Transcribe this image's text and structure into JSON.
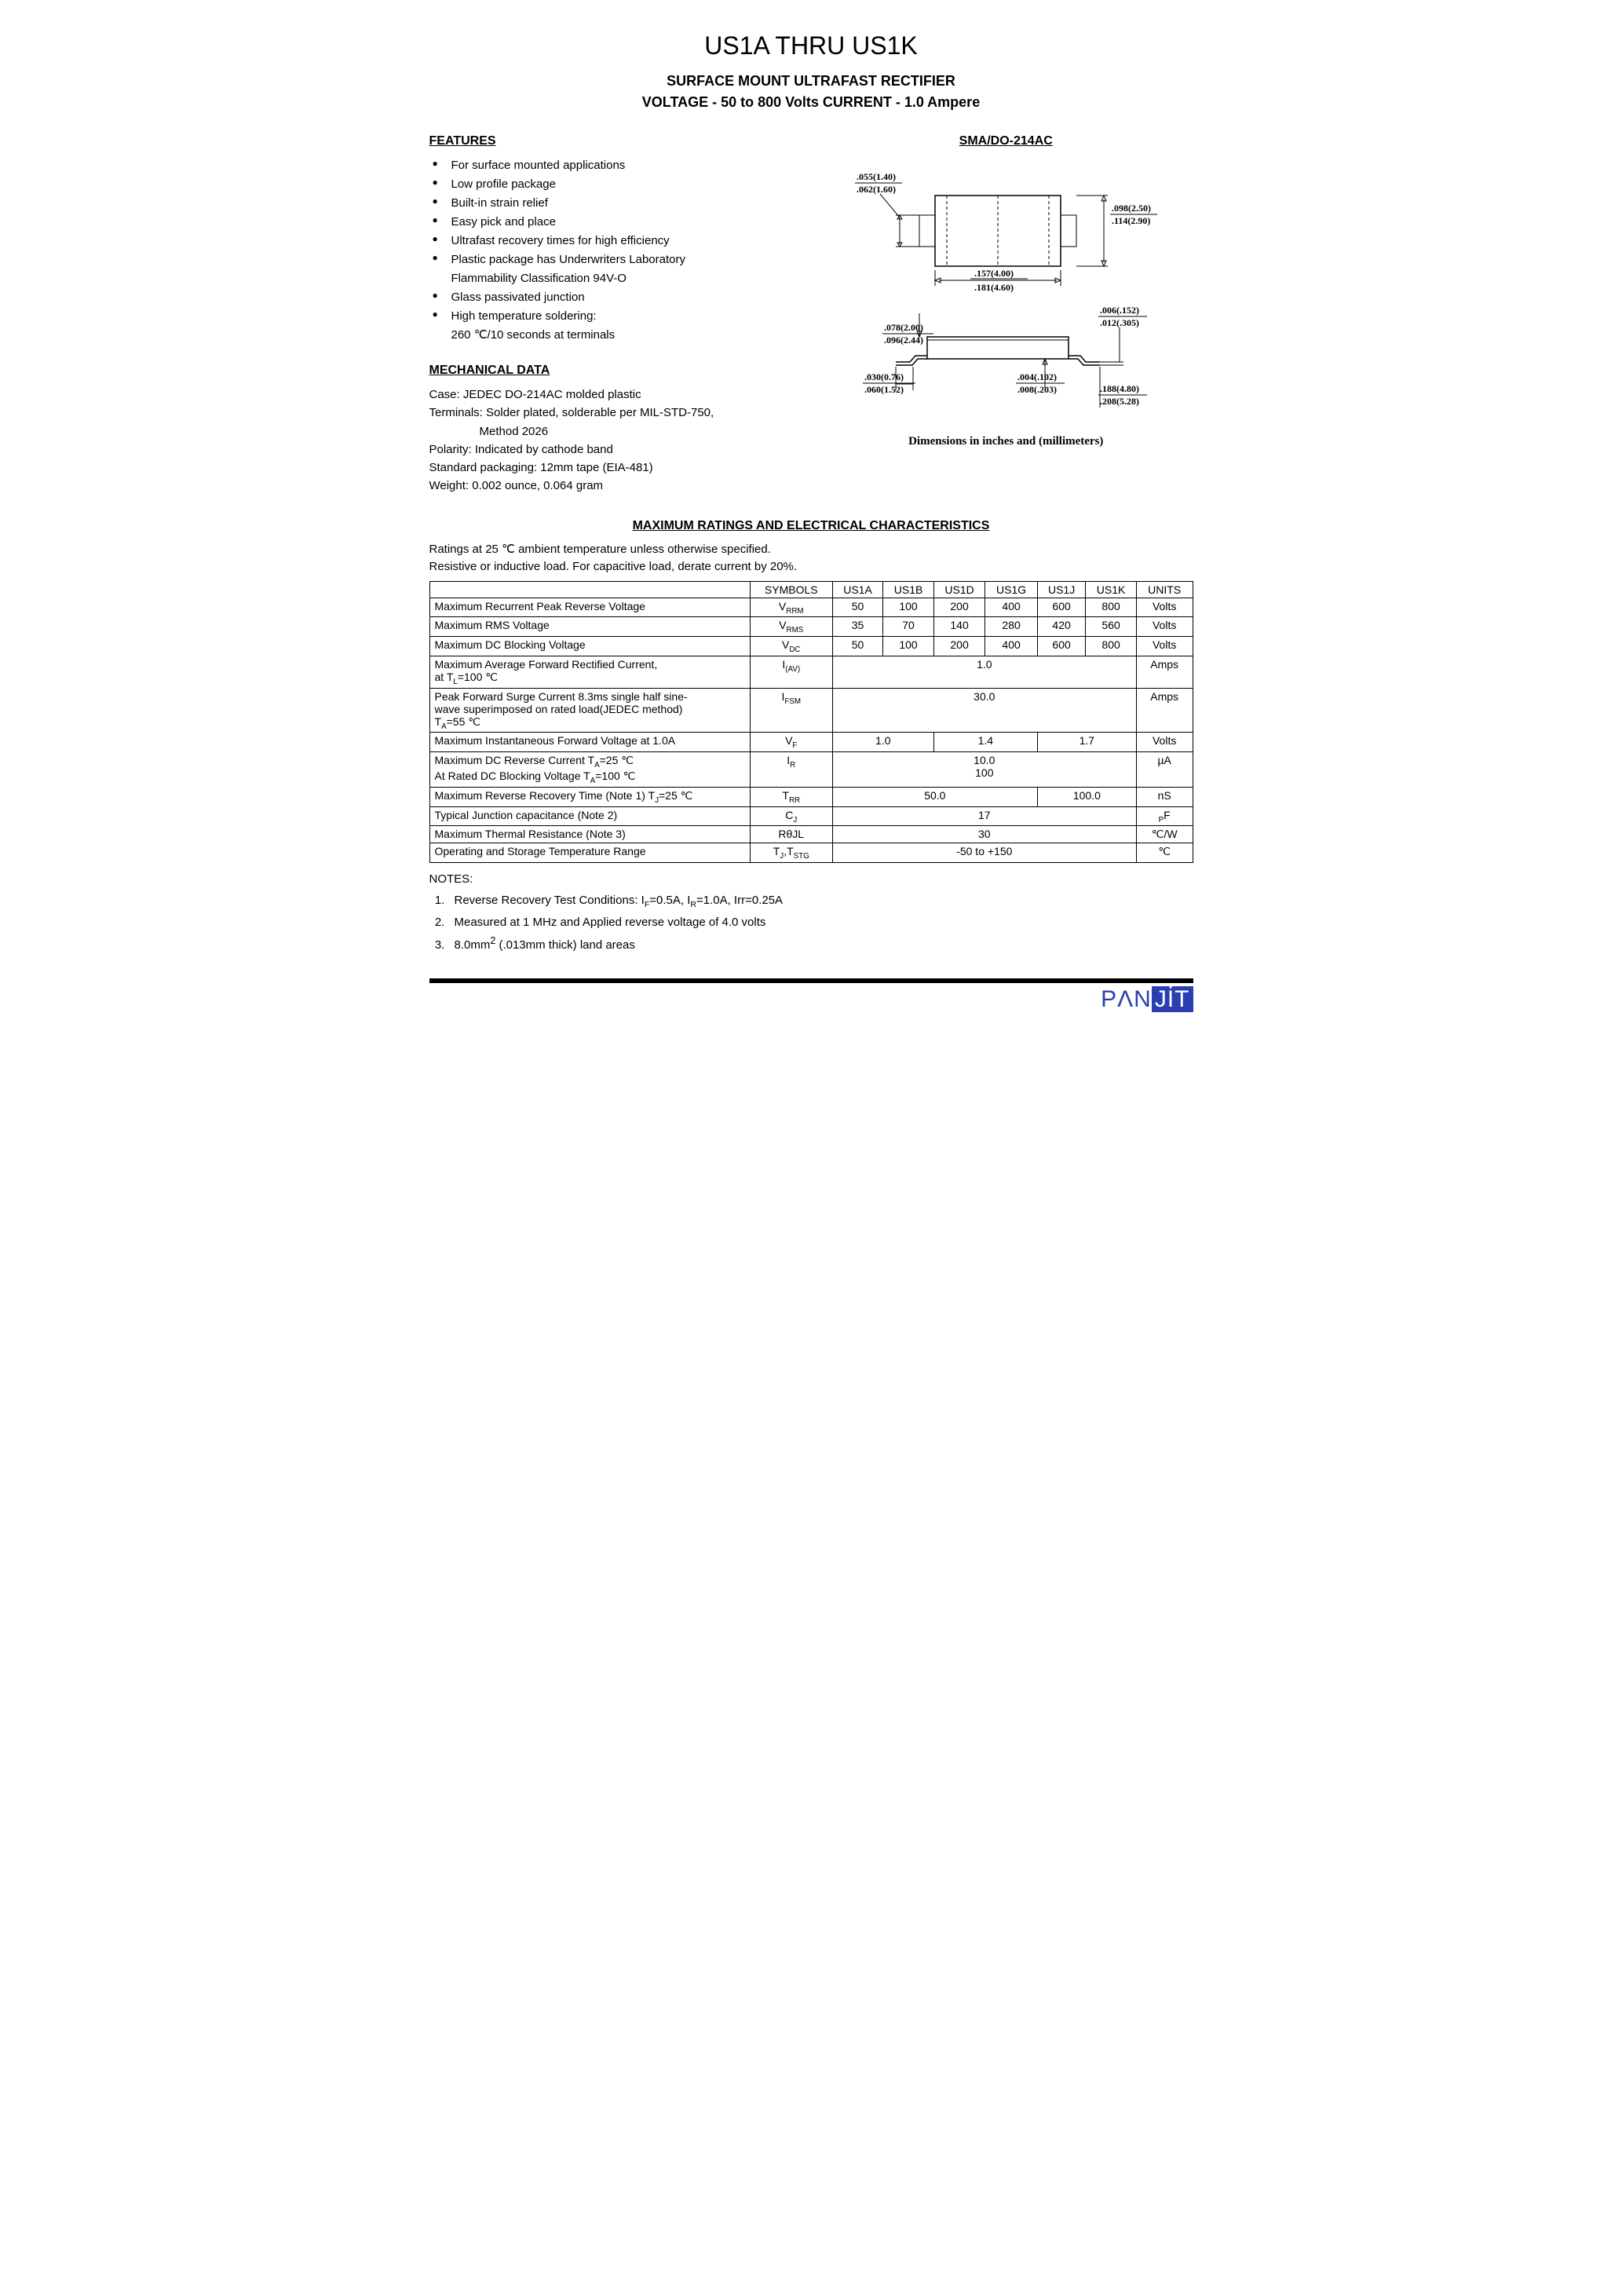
{
  "title": {
    "main": "US1A THRU US1K",
    "sub1": "SURFACE MOUNT ULTRAFAST RECTIFIER",
    "sub2": "VOLTAGE - 50 to 800 Volts    CURRENT - 1.0 Ampere"
  },
  "features": {
    "header": "FEATURES",
    "items": [
      "For surface mounted applications",
      "Low profile package",
      "Built-in strain relief",
      "Easy pick and place",
      "Ultrafast recovery times for high efficiency",
      "Plastic package has Underwriters Laboratory",
      "Flammability Classification 94V-O",
      "Glass passivated junction",
      "High temperature soldering:",
      "260 ℃/10 seconds at terminals"
    ],
    "continuation_indices": [
      6,
      9
    ]
  },
  "package": {
    "header": "SMA/DO-214AC",
    "caption": "Dimensions in inches and (millimeters)",
    "dims": {
      "d1_top": ".055(1.40)",
      "d1_bot": ".062(1.60)",
      "d2_top": ".098(2.50)",
      "d2_bot": ".114(2.90)",
      "d3_top": ".157(4.00)",
      "d3_bot": ".181(4.60)",
      "d4_top": ".006(.152)",
      "d4_bot": ".012(.305)",
      "d5_top": ".078(2.00)",
      "d5_bot": ".096(2.44)",
      "d6_top": ".030(0.76)",
      "d6_bot": ".060(1.52)",
      "d7_top": ".004(.102)",
      "d7_bot": ".008(.203)",
      "d8_top": ".188(4.80)",
      "d8_bot": ".208(5.28)"
    }
  },
  "mechanical": {
    "header": "MECHANICAL DATA",
    "lines": [
      "Case: JEDEC DO-214AC molded plastic",
      "Terminals: Solder plated, solderable per MIL-STD-750,",
      "Method 2026",
      "Polarity: Indicated by cathode band",
      "Standard packaging: 12mm tape (EIA-481)",
      "Weight: 0.002 ounce, 0.064 gram"
    ],
    "indent_indices": [
      2
    ]
  },
  "ratings": {
    "header": "MAXIMUM RATINGS AND ELECTRICAL CHARACTERISTICS",
    "intro1": "Ratings at 25 ℃  ambient temperature unless otherwise specified.",
    "intro2": "Resistive or inductive load.      For capacitive load, derate current by 20%.",
    "columns": [
      "SYMBOLS",
      "US1A",
      "US1B",
      "US1D",
      "US1G",
      "US1J",
      "US1K",
      "UNITS"
    ],
    "rows": [
      {
        "param": "Maximum Recurrent Peak Reverse Voltage",
        "symbol": "V<sub>RRM</sub>",
        "vals": [
          "50",
          "100",
          "200",
          "400",
          "600",
          "800"
        ],
        "unit": "Volts"
      },
      {
        "param": "Maximum RMS Voltage",
        "symbol": "V<sub>RMS</sub>",
        "vals": [
          "35",
          "70",
          "140",
          "280",
          "420",
          "560"
        ],
        "unit": "Volts"
      },
      {
        "param": "Maximum DC Blocking Voltage",
        "symbol": "V<sub>DC</sub>",
        "vals": [
          "50",
          "100",
          "200",
          "400",
          "600",
          "800"
        ],
        "unit": "Volts"
      },
      {
        "param": "Maximum Average Forward Rectified Current,<br>at T<sub>L</sub>=100 ℃",
        "symbol": "I<sub>(AV)</sub>",
        "span": 6,
        "val": "1.0",
        "unit": "Amps"
      },
      {
        "param": "Peak Forward Surge Current 8.3ms single half sine-<br>wave superimposed on rated load(JEDEC method)<br>T<sub>A</sub>=55 ℃",
        "symbol": "I<sub>FSM</sub>",
        "span": 6,
        "val": "30.0",
        "unit": "Amps"
      },
      {
        "param": "Maximum Instantaneous Forward Voltage at 1.0A",
        "symbol": "V<sub>F</sub>",
        "spans": [
          [
            2,
            "1.0"
          ],
          [
            2,
            "1.4"
          ],
          [
            2,
            "1.7"
          ]
        ],
        "unit": "Volts"
      },
      {
        "param": "Maximum DC Reverse Current T<sub>A</sub>=25 ℃<br>At Rated DC Blocking Voltage T<sub>A</sub>=100 ℃",
        "symbol": "I<sub>R</sub>",
        "span": 6,
        "val": "10.0<br>100",
        "unit": "µA"
      },
      {
        "param": "Maximum Reverse Recovery Time (Note 1) T<sub>J</sub>=25 ℃",
        "symbol": "T<sub>RR</sub>",
        "spans": [
          [
            4,
            "50.0"
          ],
          [
            2,
            "100.0"
          ]
        ],
        "unit": "nS"
      },
      {
        "param": "Typical Junction capacitance (Note 2)",
        "symbol": "C<sub>J</sub>",
        "span": 6,
        "val": "17",
        "unit": "<sub>P</sub>F"
      },
      {
        "param": "Maximum Thermal Resistance    (Note 3)",
        "symbol": "RθJL",
        "span": 6,
        "val": "30",
        "unit": "℃/W"
      },
      {
        "param": "Operating and Storage Temperature Range",
        "symbol": "T<sub>J</sub>,T<sub>STG</sub>",
        "span": 6,
        "val": "-50 to +150",
        "unit": "℃"
      }
    ]
  },
  "notes": {
    "header": "NOTES:",
    "items": [
      "Reverse Recovery Test Conditions: I<sub>F</sub>=0.5A, I<sub>R</sub>=1.0A, Irr=0.25A",
      "Measured at 1 MHz and Applied reverse voltage of 4.0 volts",
      "8.0mm<sup>2</sup> (.013mm thick) land areas"
    ]
  },
  "logo": {
    "pan": "PΛN",
    "jit": "JİT"
  },
  "colors": {
    "brand": "#2b3fb0",
    "bg": "#ffffff",
    "text": "#000000"
  }
}
